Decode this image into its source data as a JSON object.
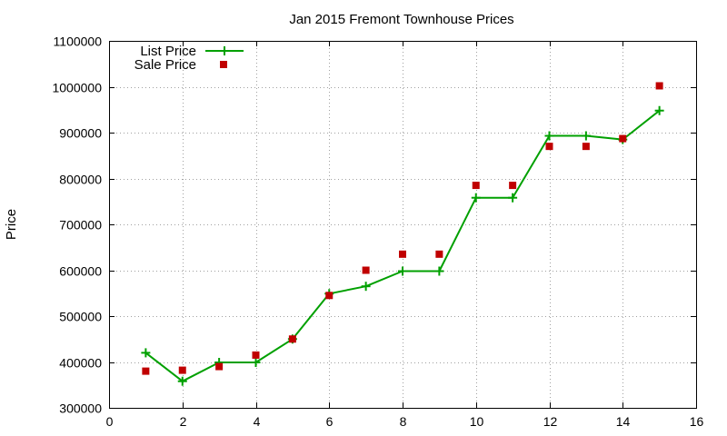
{
  "chart_data": {
    "type": "line",
    "title": "Jan 2015 Fremont Townhouse Prices",
    "xlabel": "",
    "ylabel": "Price",
    "xlim": [
      0,
      16
    ],
    "ylim": [
      300000,
      1100000
    ],
    "x_ticks": [
      0,
      2,
      4,
      6,
      8,
      10,
      12,
      14,
      16
    ],
    "y_ticks": [
      300000,
      400000,
      500000,
      600000,
      700000,
      800000,
      900000,
      1000000,
      1100000
    ],
    "grid": true,
    "legend_position": "top-left",
    "series": [
      {
        "name": "List Price",
        "style": "lines+points",
        "marker": "plus",
        "color": "#00a000",
        "x": [
          1,
          2,
          3,
          4,
          5,
          6,
          7,
          8,
          9,
          10,
          11,
          12,
          13,
          14,
          15
        ],
        "values": [
          420000,
          358000,
          399000,
          399000,
          450000,
          549000,
          565000,
          598000,
          598000,
          758000,
          758000,
          893000,
          893000,
          885000,
          948000
        ]
      },
      {
        "name": "Sale Price",
        "style": "points",
        "marker": "square",
        "color": "#c00000",
        "x": [
          1,
          2,
          3,
          4,
          5,
          6,
          7,
          8,
          9,
          10,
          11,
          12,
          13,
          14,
          15
        ],
        "values": [
          380000,
          382000,
          390000,
          415000,
          450000,
          545000,
          600000,
          635000,
          635000,
          785000,
          785000,
          870000,
          870000,
          887000,
          1002000
        ]
      }
    ]
  }
}
